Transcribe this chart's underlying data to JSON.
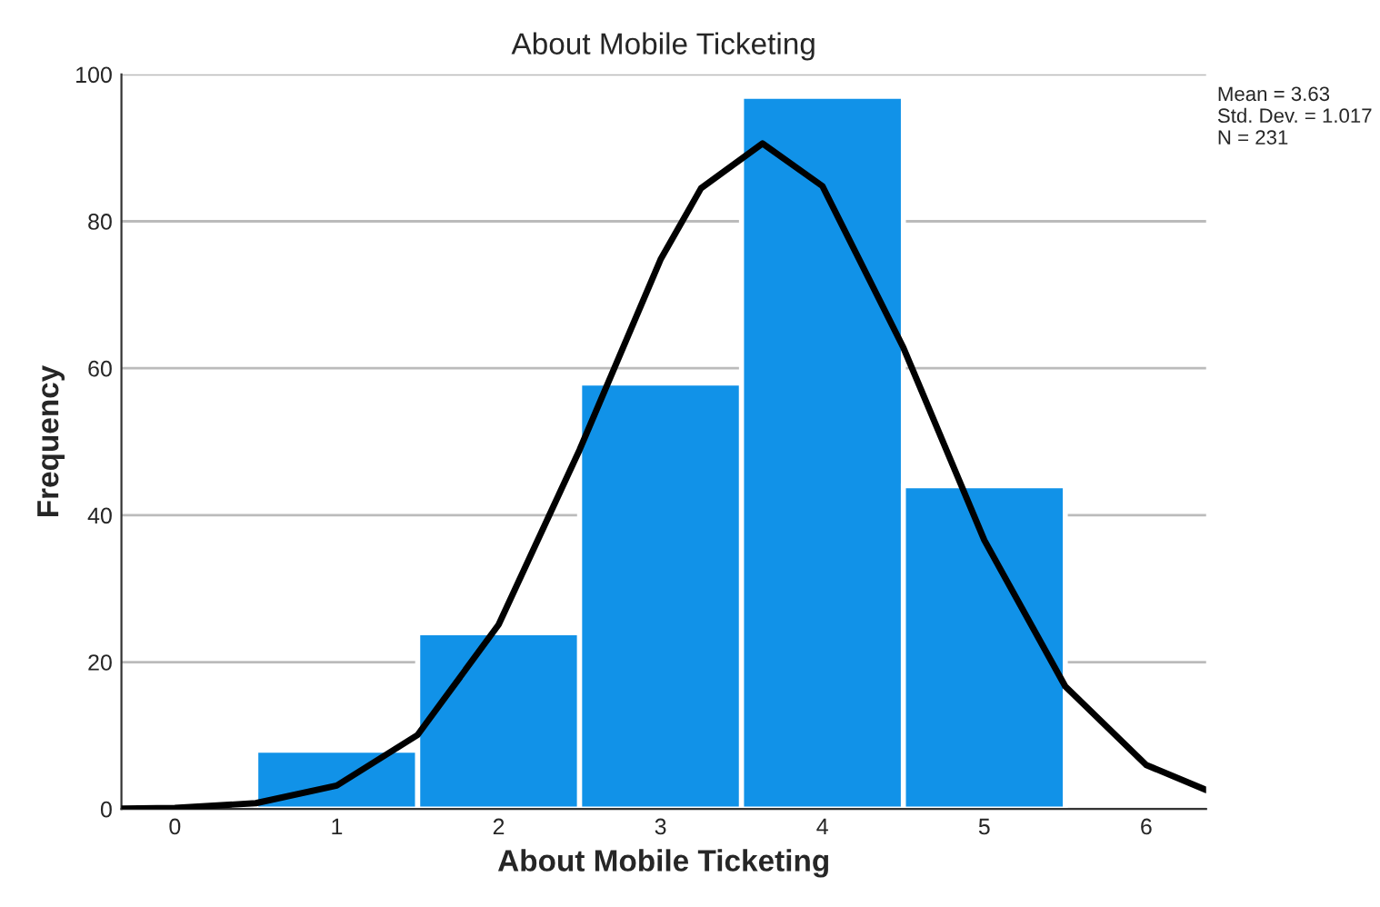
{
  "chart_data": {
    "type": "histogram",
    "title": "About Mobile Ticketing",
    "xlabel": "About Mobile Ticketing",
    "ylabel": "Frequency",
    "bins": [
      0.5,
      1.5,
      2.5,
      3.5,
      4.5,
      5.5
    ],
    "values": [
      8,
      24,
      58,
      97,
      44
    ],
    "color": "#1192e8",
    "series": [
      {
        "type": "line",
        "color": "#000000",
        "x": [
          -0.33,
          0,
          0.5,
          1,
          1.5,
          2,
          2.5,
          3,
          3.25,
          3.63,
          4,
          4.5,
          5,
          5.5,
          6,
          6.37
        ],
        "values": [
          0.05,
          0.15,
          0.8,
          3.2,
          10.1,
          25.1,
          48.9,
          74.8,
          84.5,
          90.6,
          84.8,
          62.8,
          36.6,
          16.7,
          6.0,
          2.6
        ]
      }
    ],
    "annotations": [
      "Mean = 3.63\nStd. Dev. = 1.017\nN = 231"
    ],
    "xlim": [
      -0.33,
      6.37
    ],
    "xticks": [
      0,
      1,
      2,
      3,
      4,
      5,
      6
    ],
    "ylim": [
      0,
      100
    ],
    "yticks": [
      0,
      20,
      40,
      60,
      80,
      100
    ],
    "grid": "y"
  }
}
